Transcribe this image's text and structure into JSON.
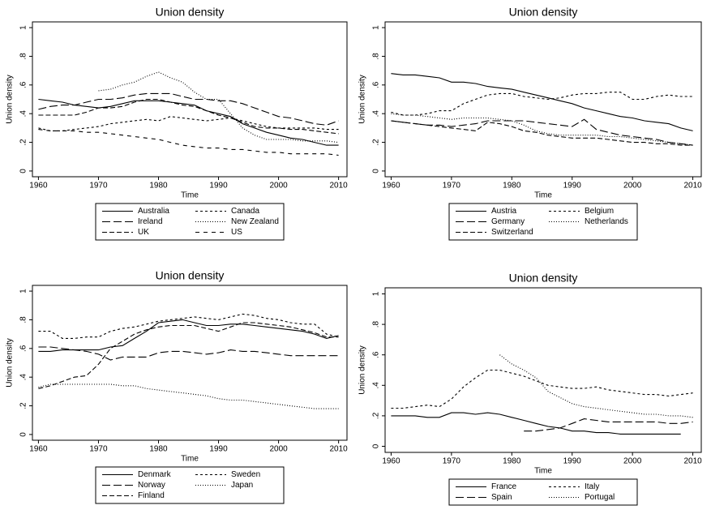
{
  "chart_data": [
    {
      "type": "line",
      "title": "Union density",
      "xlabel": "Time",
      "ylabel": "Union density",
      "x": [
        1960,
        1962,
        1964,
        1966,
        1968,
        1970,
        1972,
        1974,
        1976,
        1978,
        1980,
        1982,
        1984,
        1986,
        1988,
        1990,
        1992,
        1994,
        1996,
        1998,
        2000,
        2002,
        2004,
        2006,
        2008,
        2010
      ],
      "xlim": [
        1959,
        2011.4
      ],
      "ylim": [
        -0.04,
        1.04
      ],
      "xticks": [
        1960,
        1970,
        1980,
        1990,
        2000,
        2010
      ],
      "yticks": [
        0,
        {
          "value": 0.2,
          "label": ".2"
        },
        {
          "value": 0.4,
          "label": ".4"
        },
        {
          "value": 0.6,
          "label": ".6"
        },
        {
          "value": 0.8,
          "label": ".8"
        },
        1
      ],
      "series": [
        {
          "name": "Australia",
          "color": "#000000",
          "values": [
            0.5,
            0.49,
            0.48,
            0.46,
            0.45,
            0.44,
            0.45,
            0.47,
            0.49,
            0.49,
            0.49,
            0.48,
            0.47,
            0.46,
            0.42,
            0.4,
            0.38,
            0.33,
            0.3,
            0.27,
            0.25,
            0.23,
            0.22,
            0.2,
            0.18,
            0.18
          ]
        },
        {
          "name": "Canada",
          "color": "#000000",
          "values": [
            0.3,
            0.28,
            0.28,
            0.29,
            0.3,
            0.31,
            0.33,
            0.34,
            0.35,
            0.36,
            0.35,
            0.38,
            0.37,
            0.36,
            0.35,
            0.36,
            0.37,
            0.35,
            0.33,
            0.31,
            0.3,
            0.3,
            0.3,
            0.3,
            0.29,
            0.29
          ]
        },
        {
          "name": "Ireland",
          "color": "#000000",
          "values": [
            0.43,
            0.45,
            0.46,
            0.46,
            0.48,
            0.5,
            0.5,
            0.51,
            0.53,
            0.54,
            0.54,
            0.54,
            0.52,
            0.5,
            0.5,
            0.49,
            0.49,
            0.47,
            0.44,
            0.41,
            0.38,
            0.37,
            0.35,
            0.33,
            0.32,
            0.35
          ]
        },
        {
          "name": "New Zealand",
          "color": "#000000",
          "values": [
            null,
            null,
            null,
            null,
            null,
            0.56,
            0.57,
            0.6,
            0.62,
            0.66,
            0.69,
            0.65,
            0.62,
            0.55,
            0.5,
            0.5,
            0.4,
            0.3,
            0.25,
            0.22,
            0.22,
            0.22,
            0.21,
            0.21,
            0.21,
            0.2
          ]
        },
        {
          "name": "UK",
          "color": "#000000",
          "values": [
            0.39,
            0.39,
            0.39,
            0.39,
            0.41,
            0.44,
            0.44,
            0.45,
            0.48,
            0.5,
            0.5,
            0.48,
            0.46,
            0.45,
            0.42,
            0.39,
            0.37,
            0.34,
            0.31,
            0.3,
            0.3,
            0.29,
            0.29,
            0.28,
            0.27,
            0.26
          ]
        },
        {
          "name": "US",
          "color": "#000000",
          "values": [
            0.29,
            0.28,
            0.28,
            0.28,
            0.27,
            0.27,
            0.26,
            0.25,
            0.24,
            0.23,
            0.22,
            0.2,
            0.18,
            0.17,
            0.16,
            0.16,
            0.15,
            0.15,
            0.14,
            0.13,
            0.13,
            0.12,
            0.12,
            0.12,
            0.12,
            0.11
          ]
        }
      ]
    },
    {
      "type": "line",
      "title": "Union density",
      "xlabel": "Time",
      "ylabel": "Union density",
      "x": [
        1960,
        1962,
        1964,
        1966,
        1968,
        1970,
        1972,
        1974,
        1976,
        1978,
        1980,
        1982,
        1984,
        1986,
        1988,
        1990,
        1992,
        1994,
        1996,
        1998,
        2000,
        2002,
        2004,
        2006,
        2008,
        2010
      ],
      "xlim": [
        1959,
        2011.4
      ],
      "ylim": [
        -0.04,
        1.04
      ],
      "xticks": [
        1960,
        1970,
        1980,
        1990,
        2000,
        2010
      ],
      "yticks": [
        0,
        {
          "value": 0.2,
          "label": ".2"
        },
        {
          "value": 0.4,
          "label": ".4"
        },
        {
          "value": 0.6,
          "label": ".6"
        },
        {
          "value": 0.8,
          "label": ".8"
        },
        1
      ],
      "series": [
        {
          "name": "Austria",
          "color": "#000000",
          "values": [
            0.68,
            0.67,
            0.67,
            0.66,
            0.65,
            0.62,
            0.62,
            0.61,
            0.59,
            0.58,
            0.57,
            0.55,
            0.53,
            0.51,
            0.49,
            0.47,
            0.44,
            0.42,
            0.4,
            0.38,
            0.37,
            0.35,
            0.34,
            0.33,
            0.3,
            0.28
          ]
        },
        {
          "name": "Belgium",
          "color": "#000000",
          "values": [
            0.41,
            0.39,
            0.39,
            0.4,
            0.42,
            0.42,
            0.47,
            0.5,
            0.53,
            0.54,
            0.54,
            0.52,
            0.51,
            0.5,
            0.51,
            0.53,
            0.54,
            0.54,
            0.55,
            0.55,
            0.5,
            0.5,
            0.52,
            0.53,
            0.52,
            0.52
          ]
        },
        {
          "name": "Germany",
          "color": "#000000",
          "values": [
            0.35,
            0.34,
            0.33,
            0.32,
            0.32,
            0.31,
            0.32,
            0.33,
            0.35,
            0.35,
            0.35,
            0.35,
            0.34,
            0.33,
            0.32,
            0.31,
            0.36,
            0.29,
            0.27,
            0.25,
            0.24,
            0.23,
            0.22,
            0.2,
            0.19,
            0.18
          ]
        },
        {
          "name": "Netherlands",
          "color": "#000000",
          "values": [
            0.4,
            0.39,
            0.39,
            0.38,
            0.37,
            0.36,
            0.37,
            0.37,
            0.37,
            0.36,
            0.35,
            0.32,
            0.28,
            0.26,
            0.25,
            0.25,
            0.25,
            0.25,
            0.24,
            0.24,
            0.23,
            0.22,
            0.21,
            0.2,
            0.19,
            0.18
          ]
        },
        {
          "name": "Switzerland",
          "color": "#000000",
          "values": [
            0.35,
            0.34,
            0.33,
            0.32,
            0.31,
            0.3,
            0.29,
            0.28,
            0.34,
            0.33,
            0.31,
            0.28,
            0.27,
            0.25,
            0.24,
            0.23,
            0.23,
            0.23,
            0.22,
            0.21,
            0.2,
            0.2,
            0.19,
            0.19,
            0.18,
            0.18
          ]
        }
      ]
    },
    {
      "type": "line",
      "title": "Union density",
      "xlabel": "Time",
      "ylabel": "Union density",
      "x": [
        1960,
        1962,
        1964,
        1966,
        1968,
        1970,
        1972,
        1974,
        1976,
        1978,
        1980,
        1982,
        1984,
        1986,
        1988,
        1990,
        1992,
        1994,
        1996,
        1998,
        2000,
        2002,
        2004,
        2006,
        2008,
        2010
      ],
      "xlim": [
        1959,
        2011.4
      ],
      "ylim": [
        -0.04,
        1.04
      ],
      "xticks": [
        1960,
        1970,
        1980,
        1990,
        2000,
        2010
      ],
      "yticks": [
        0,
        {
          "value": 0.2,
          "label": ".2"
        },
        {
          "value": 0.4,
          "label": ".4"
        },
        {
          "value": 0.6,
          "label": ".6"
        },
        {
          "value": 0.8,
          "label": ".8"
        },
        1
      ],
      "series": [
        {
          "name": "Denmark",
          "color": "#000000",
          "values": [
            0.58,
            0.58,
            0.59,
            0.59,
            0.59,
            0.59,
            0.61,
            0.62,
            0.67,
            0.72,
            0.78,
            0.79,
            0.8,
            0.78,
            0.76,
            0.76,
            0.77,
            0.77,
            0.76,
            0.75,
            0.74,
            0.73,
            0.72,
            0.7,
            0.67,
            0.69
          ]
        },
        {
          "name": "Sweden",
          "color": "#000000",
          "values": [
            0.72,
            0.72,
            0.67,
            0.67,
            0.68,
            0.68,
            0.72,
            0.74,
            0.75,
            0.77,
            0.79,
            0.8,
            0.81,
            0.82,
            0.81,
            0.8,
            0.82,
            0.84,
            0.83,
            0.81,
            0.8,
            0.78,
            0.77,
            0.77,
            0.7,
            0.68
          ]
        },
        {
          "name": "Norway",
          "color": "#000000",
          "values": [
            0.61,
            0.61,
            0.6,
            0.59,
            0.58,
            0.56,
            0.52,
            0.54,
            0.54,
            0.54,
            0.57,
            0.58,
            0.58,
            0.57,
            0.56,
            0.57,
            0.59,
            0.58,
            0.58,
            0.57,
            0.56,
            0.55,
            0.55,
            0.55,
            0.55,
            0.55
          ]
        },
        {
          "name": "Japan",
          "color": "#000000",
          "values": [
            0.33,
            0.35,
            0.35,
            0.35,
            0.35,
            0.35,
            0.35,
            0.34,
            0.34,
            0.32,
            0.31,
            0.3,
            0.29,
            0.28,
            0.27,
            0.25,
            0.24,
            0.24,
            0.23,
            0.22,
            0.21,
            0.2,
            0.19,
            0.18,
            0.18,
            0.18
          ]
        },
        {
          "name": "Finland",
          "color": "#000000",
          "values": [
            0.32,
            0.34,
            0.37,
            0.4,
            0.41,
            0.49,
            0.6,
            0.65,
            0.7,
            0.73,
            0.75,
            0.76,
            0.76,
            0.76,
            0.74,
            0.72,
            0.75,
            0.78,
            0.78,
            0.77,
            0.76,
            0.75,
            0.73,
            0.71,
            0.68,
            0.68
          ]
        }
      ]
    },
    {
      "type": "line",
      "title": "Union density",
      "xlabel": "Time",
      "ylabel": "Union density",
      "x": [
        1960,
        1962,
        1964,
        1966,
        1968,
        1970,
        1972,
        1974,
        1976,
        1978,
        1980,
        1982,
        1984,
        1986,
        1988,
        1990,
        1992,
        1994,
        1996,
        1998,
        2000,
        2002,
        2004,
        2006,
        2008,
        2010
      ],
      "xlim": [
        1959,
        2011.4
      ],
      "ylim": [
        -0.04,
        1.04
      ],
      "xticks": [
        1960,
        1970,
        1980,
        1990,
        2000,
        2010
      ],
      "yticks": [
        0,
        {
          "value": 0.2,
          "label": ".2"
        },
        {
          "value": 0.4,
          "label": ".4"
        },
        {
          "value": 0.6,
          "label": ".6"
        },
        {
          "value": 0.8,
          "label": ".8"
        },
        1
      ],
      "series": [
        {
          "name": "France",
          "color": "#000000",
          "values": [
            0.2,
            0.2,
            0.2,
            0.19,
            0.19,
            0.22,
            0.22,
            0.21,
            0.22,
            0.21,
            0.19,
            0.17,
            0.15,
            0.13,
            0.12,
            0.1,
            0.1,
            0.09,
            0.09,
            0.08,
            0.08,
            0.08,
            0.08,
            0.08,
            0.08,
            null
          ]
        },
        {
          "name": "Italy",
          "color": "#000000",
          "values": [
            0.25,
            0.25,
            0.26,
            0.27,
            0.26,
            0.31,
            0.39,
            0.45,
            0.5,
            0.5,
            0.48,
            0.46,
            0.43,
            0.4,
            0.39,
            0.38,
            0.38,
            0.39,
            0.37,
            0.36,
            0.35,
            0.34,
            0.34,
            0.33,
            0.34,
            0.35
          ]
        },
        {
          "name": "Spain",
          "color": "#000000",
          "values": [
            null,
            null,
            null,
            null,
            null,
            null,
            null,
            null,
            null,
            null,
            null,
            0.1,
            0.1,
            0.11,
            0.12,
            0.15,
            0.18,
            0.17,
            0.16,
            0.16,
            0.16,
            0.16,
            0.16,
            0.15,
            0.15,
            0.16
          ]
        },
        {
          "name": "Portugal",
          "color": "#000000",
          "values": [
            null,
            null,
            null,
            null,
            null,
            null,
            null,
            null,
            null,
            0.6,
            0.54,
            0.5,
            0.45,
            0.36,
            0.32,
            0.28,
            0.26,
            0.25,
            0.24,
            0.23,
            0.22,
            0.21,
            0.21,
            0.2,
            0.2,
            0.19
          ]
        }
      ]
    }
  ]
}
